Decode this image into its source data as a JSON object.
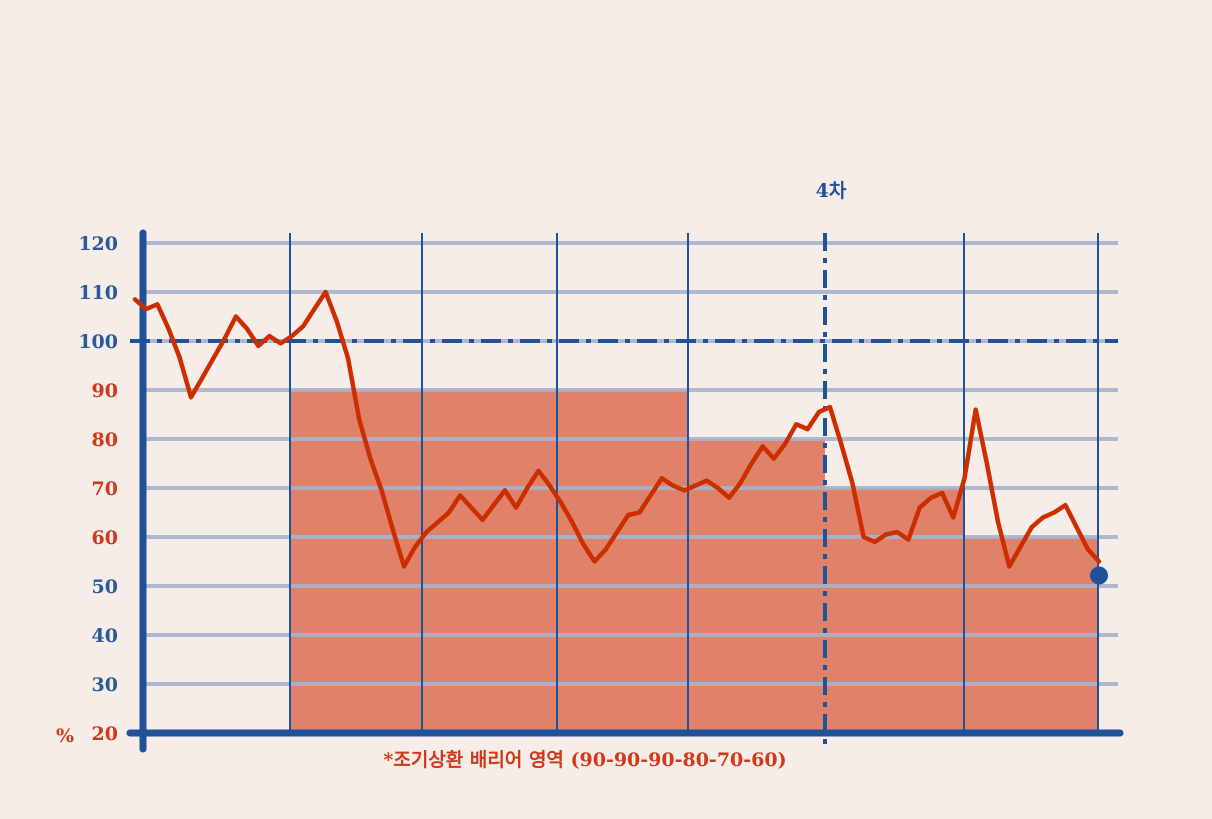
{
  "colors": {
    "background": "#f6ece8",
    "axis_blue": "#1f5299",
    "grid": "#a7b4cd",
    "line_red": "#cc2e00",
    "barrier_fill": "#e0826a",
    "tick_red": "#d0391a",
    "tick_blue": "#2a5a9a"
  },
  "chart_data": {
    "type": "line",
    "title": "",
    "xlabel": "",
    "ylabel": "",
    "unit_label": "%",
    "ylim": [
      20,
      120
    ],
    "yticks": [
      20,
      30,
      40,
      50,
      60,
      70,
      80,
      90,
      100,
      110,
      120
    ],
    "reference_line": 100,
    "marker_label": "4차",
    "barrier_note": "*조기상환 배리어 영역 (90-90-90-80-70-60)",
    "barrier_levels": [
      90,
      90,
      90,
      80,
      70,
      60
    ],
    "series": [
      {
        "values": [
          108.5,
          106.5,
          107.5,
          102.5,
          96.5,
          88.5,
          92.5,
          96.5,
          100.5,
          105,
          102.5,
          99,
          101,
          99.5,
          101,
          103,
          106.5,
          110,
          104,
          96.5,
          84,
          76,
          69.5,
          61.5,
          54,
          58,
          61,
          63,
          65,
          68.5,
          66,
          63.5,
          66.5,
          69.5,
          66,
          70,
          73.5,
          70.5,
          67,
          63,
          58.5,
          55,
          57.5,
          61,
          64.5,
          65,
          68.5,
          72,
          70.5,
          69.5,
          70.5,
          71.5,
          70,
          68,
          71,
          75,
          78.5,
          76,
          79,
          83,
          82,
          85.5,
          86.5,
          79,
          71,
          60,
          59,
          60.5,
          61,
          59.5,
          66,
          68,
          69,
          64,
          72,
          86,
          75,
          63,
          54,
          58,
          62,
          64,
          65,
          66.5,
          62,
          57.5,
          55
        ]
      }
    ],
    "end_point": 55
  }
}
